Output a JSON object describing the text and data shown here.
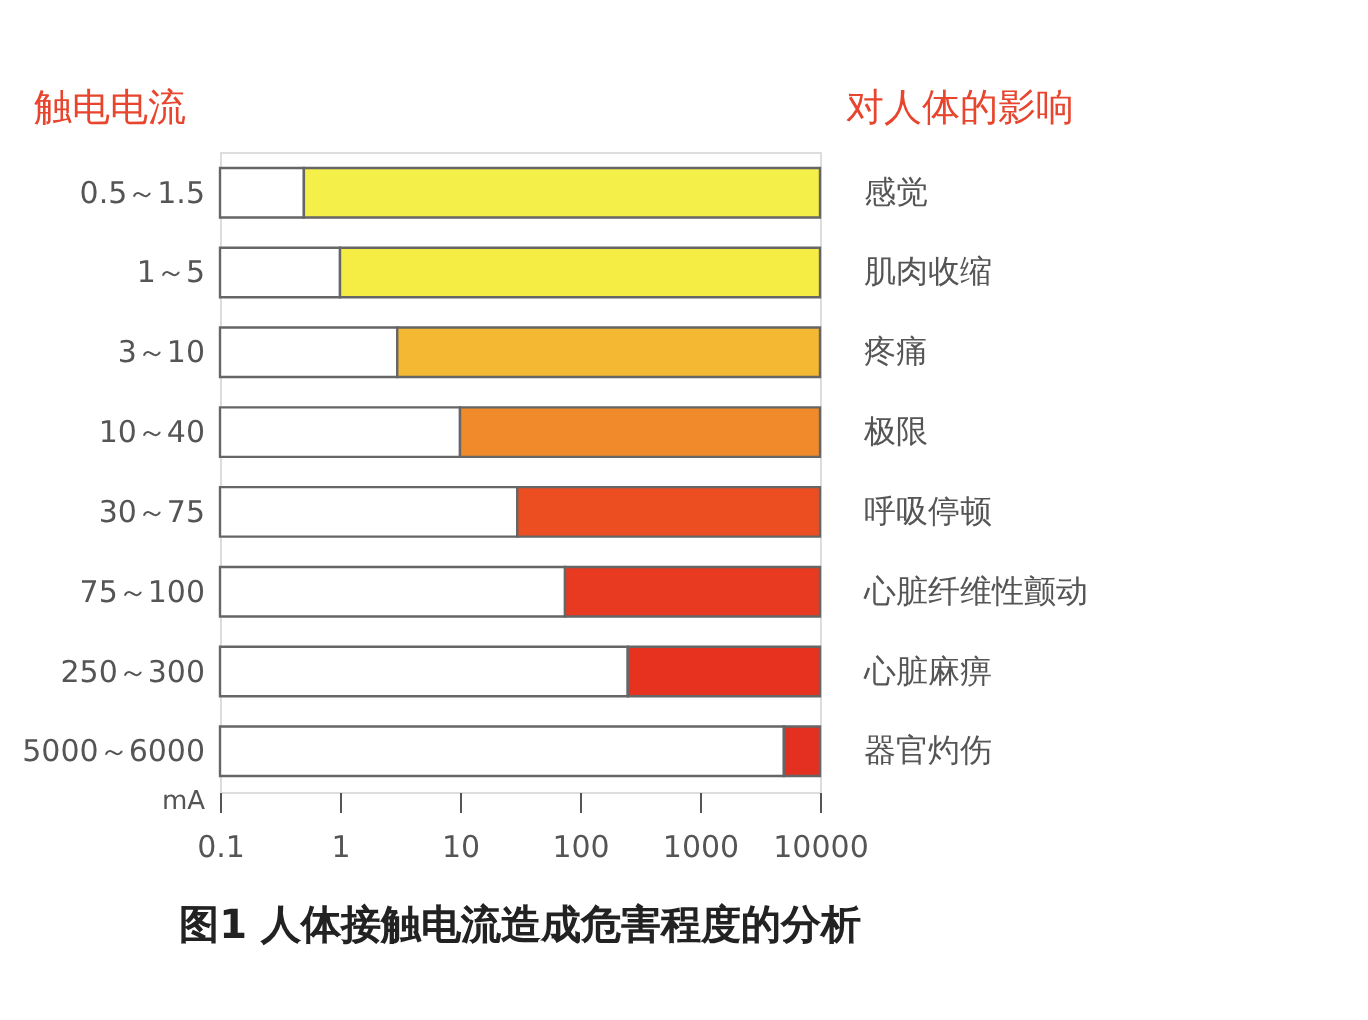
{
  "chart_data": {
    "type": "bar",
    "orientation": "horizontal",
    "title": "图1 人体接触电流造成危害程度的分析",
    "xlabel": "mA",
    "categories": [
      "0.5～1.5",
      "1～5",
      "3～10",
      "10～40",
      "30～75",
      "75～100",
      "250～300",
      "5000～6000"
    ],
    "series": [
      {
        "color": "#ffffff",
        "base": [
          0.1,
          0.1,
          0.1,
          0.1,
          0.1,
          0.1,
          0.1,
          0.1
        ],
        "values": [
          0.4,
          0.9,
          2.9,
          9.9,
          29.9,
          74.9,
          249.9,
          4999.9
        ]
      },
      {
        "colors": [
          "#f5ef4a",
          "#f5ec44",
          "#f5b832",
          "#f08a2a",
          "#ec4e22",
          "#e83a20",
          "#e6321e",
          "#e43020"
        ],
        "base": [
          0.5,
          1,
          3,
          10,
          30,
          75,
          250,
          5000
        ],
        "values": [
          9999.5,
          9999,
          9997,
          9990,
          9970,
          9925,
          9750,
          5000
        ]
      }
    ],
    "log": "x",
    "xlim": [
      0.1,
      10000
    ],
    "xticks": [
      0.1,
      1,
      10,
      100,
      1000,
      10000
    ],
    "grid": false,
    "annotations": [
      "触电电流",
      "对人体的影响",
      "感觉",
      "肌肉收缩",
      "疼痛",
      "极限",
      "呼吸停顿",
      "心脏纤维性颤动",
      "心脏麻痹",
      "器官灼伤"
    ]
  }
}
